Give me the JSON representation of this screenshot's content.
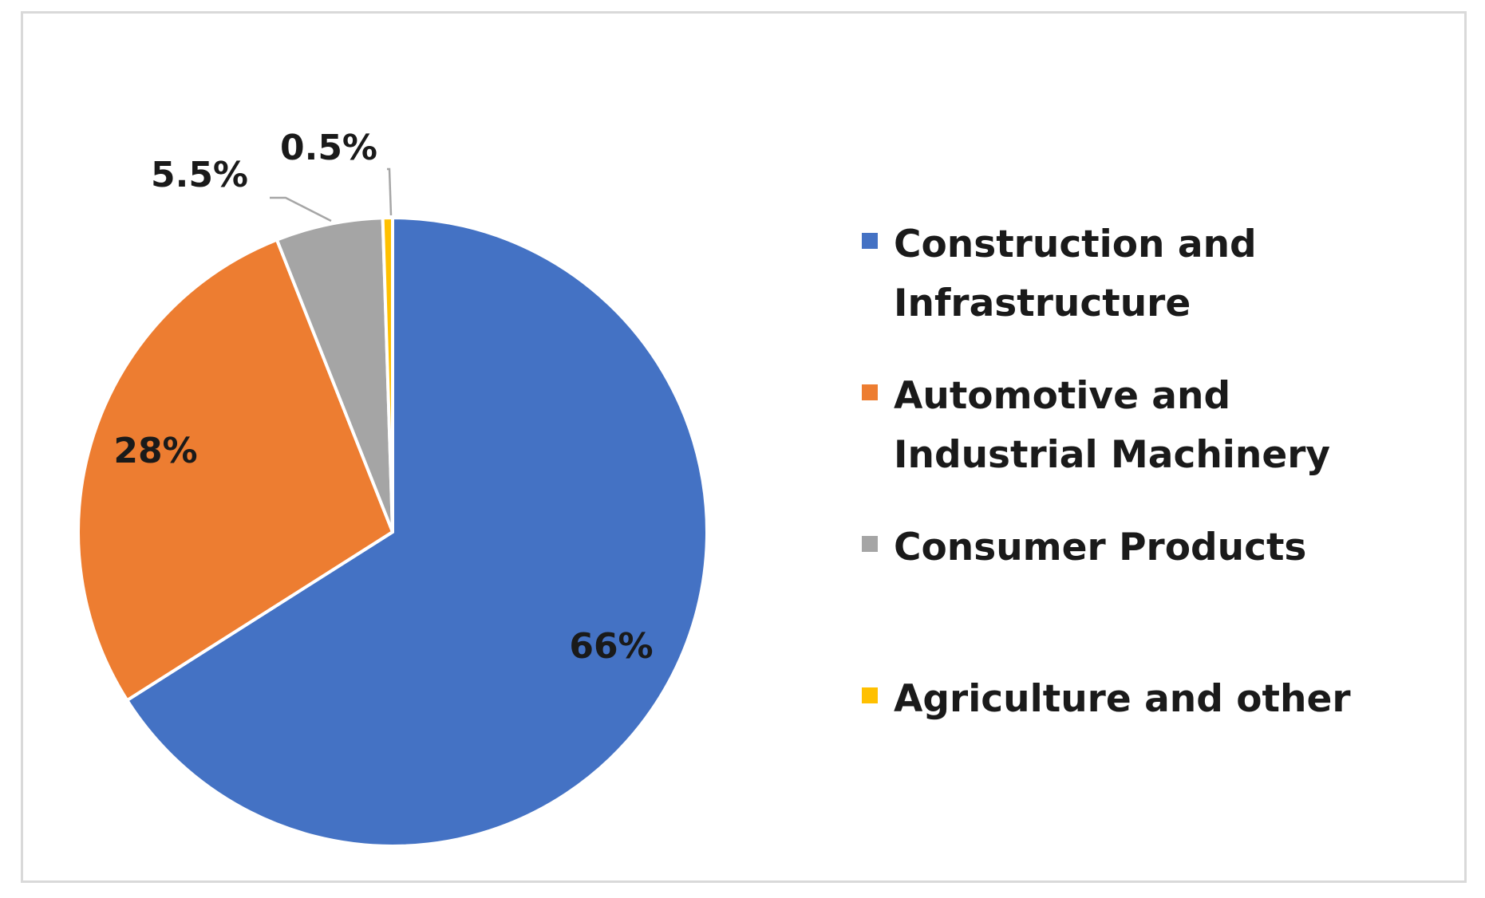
{
  "chart_data": {
    "type": "pie",
    "title": "",
    "start_angle_deg": 0,
    "direction": "clockwise",
    "legend_position": "right",
    "slices": [
      {
        "label": "Construction and\nInfrastructure",
        "value": 66,
        "value_label": "66%",
        "color": "#4472C4"
      },
      {
        "label": "Automotive and\nIndustrial Machinery",
        "value": 28,
        "value_label": "28%",
        "color": "#ED7D31"
      },
      {
        "label": "Consumer Products",
        "value": 5.5,
        "value_label": "5.5%",
        "color": "#A5A5A5"
      },
      {
        "label": "Agriculture and other",
        "value": 0.5,
        "value_label": "0.5%",
        "color": "#FFC000"
      }
    ]
  }
}
